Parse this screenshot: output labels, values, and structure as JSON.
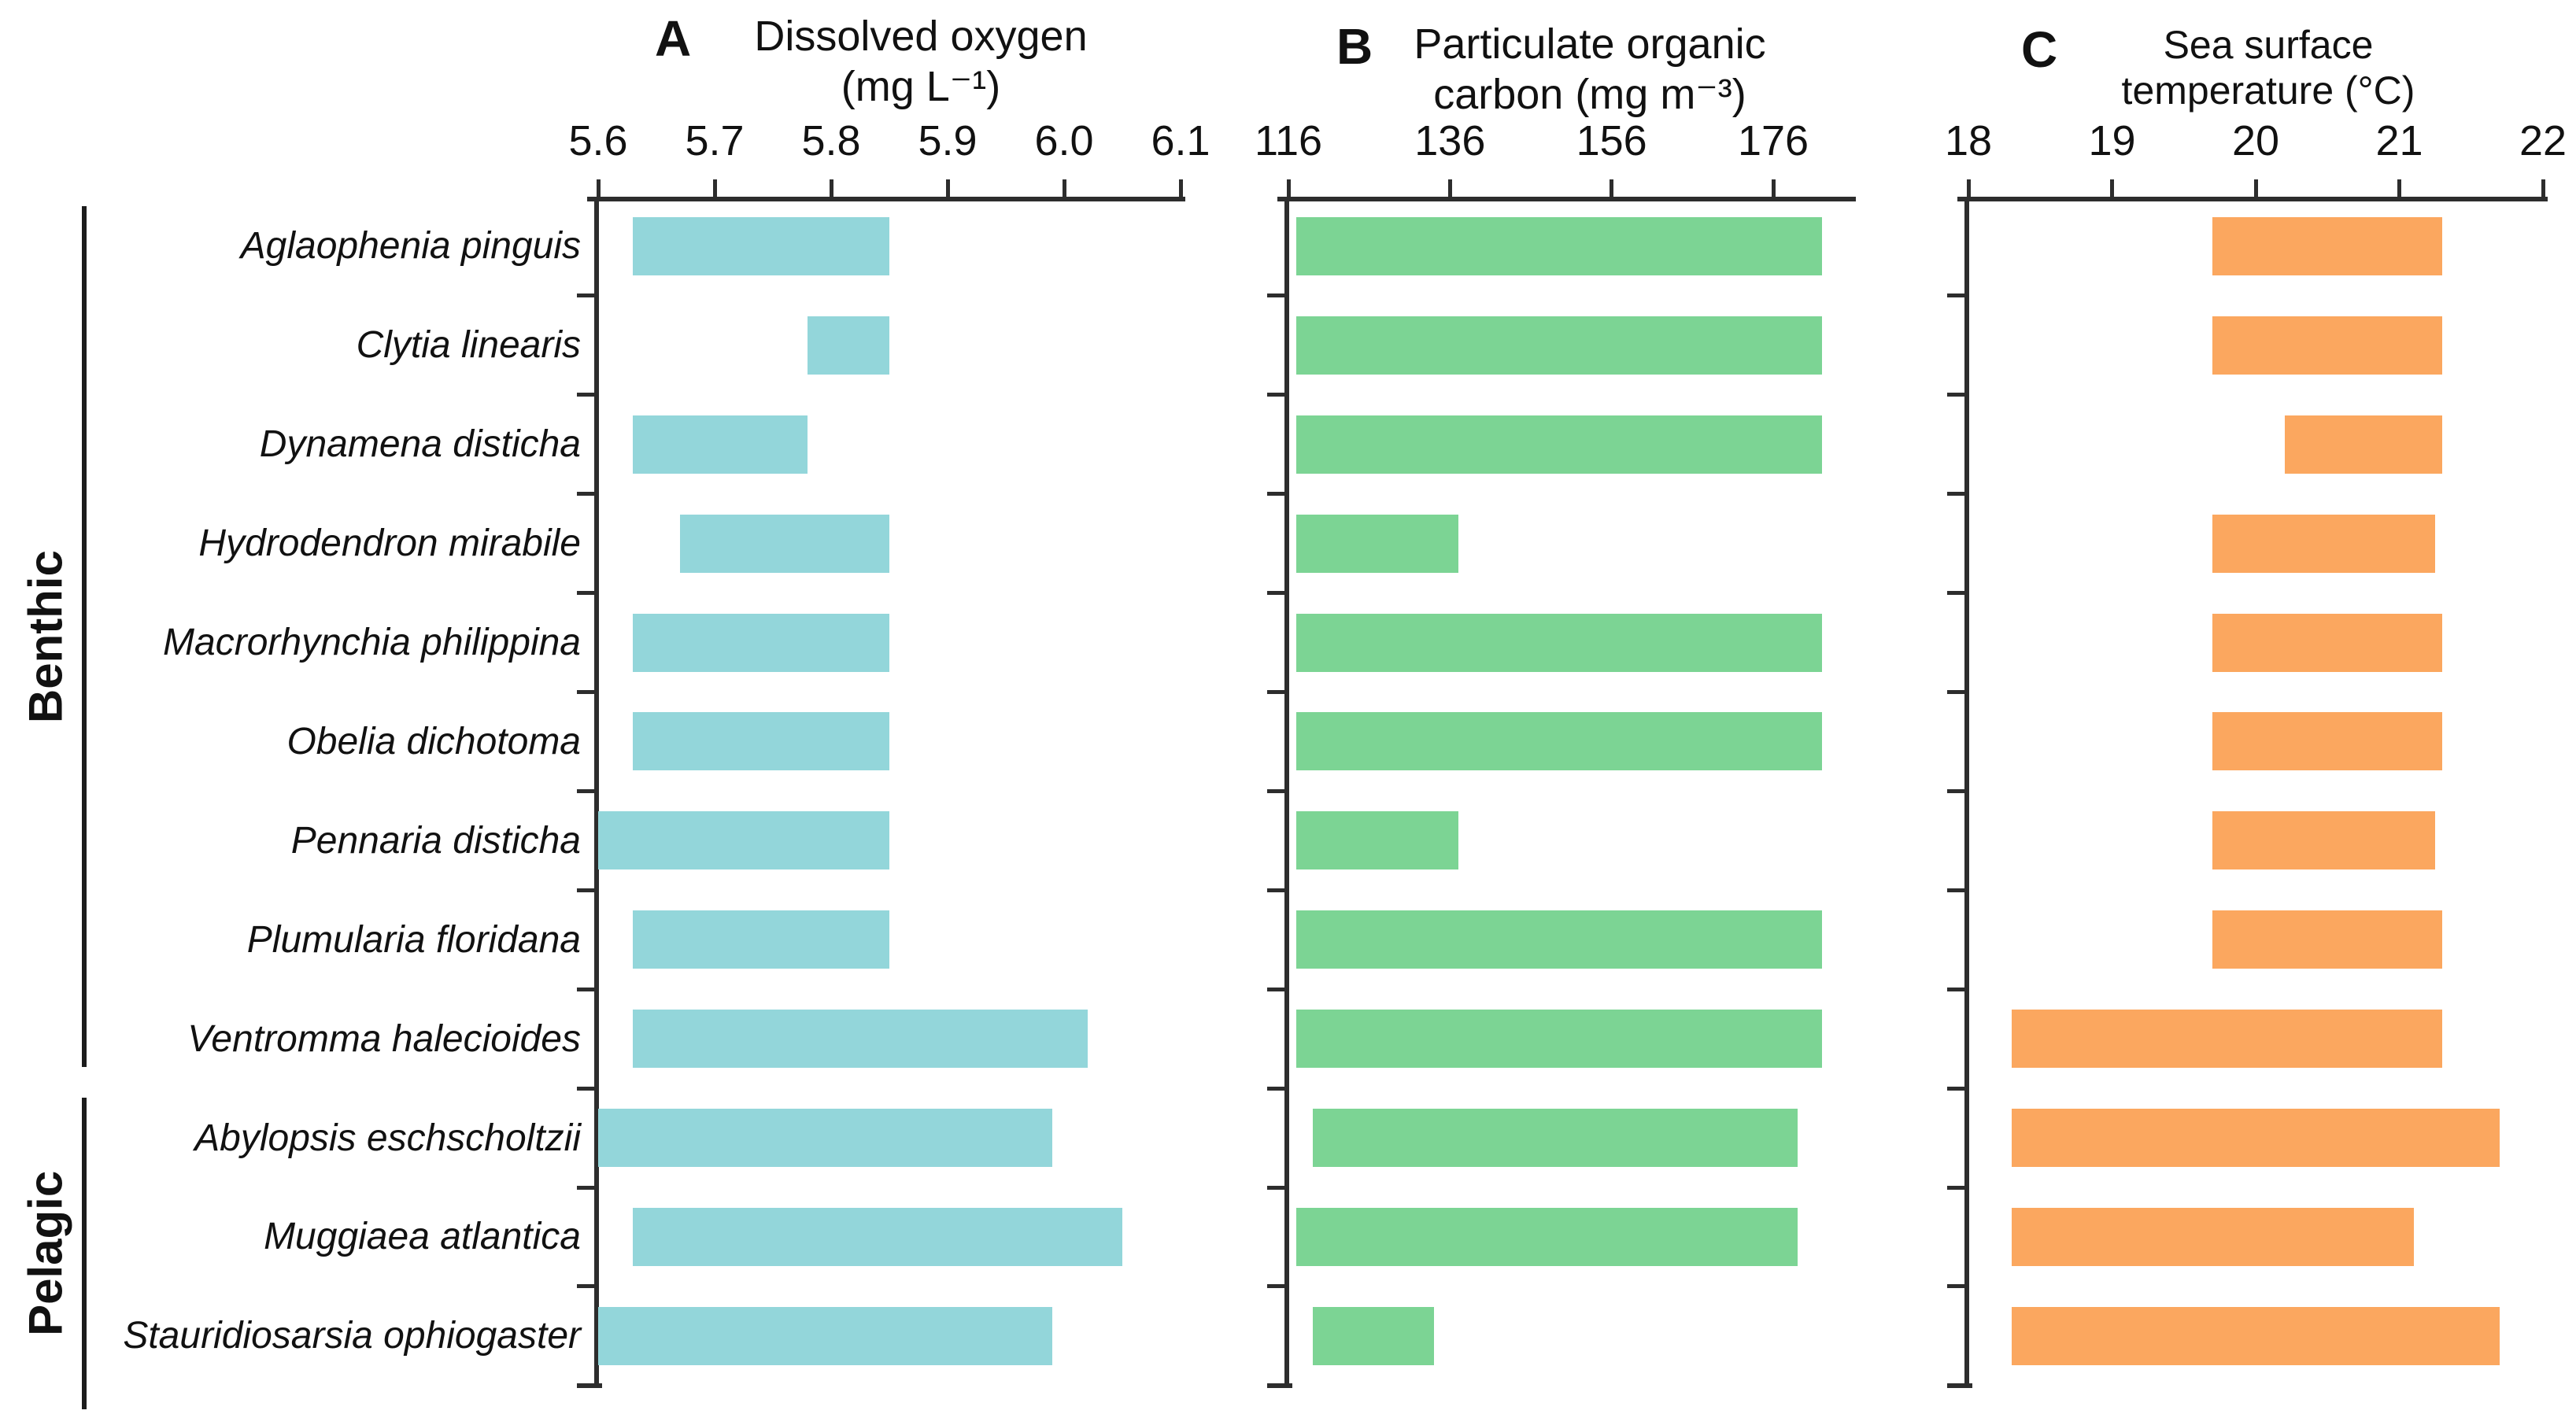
{
  "figure": {
    "background": "#ffffff",
    "axis_color": "#2d2d2d",
    "text_color": "#111111"
  },
  "groups": [
    {
      "label": "Benthic",
      "start_row": 0,
      "end_row": 8
    },
    {
      "label": "Pelagic",
      "start_row": 9,
      "end_row": 11
    }
  ],
  "species": [
    "Aglaophenia pinguis",
    "Clytia linearis",
    "Dynamena disticha",
    "Hydrodendron mirabile",
    "Macrorhynchia philippina",
    "Obelia dichotoma",
    "Pennaria disticha",
    "Plumularia floridana",
    "Ventromma halecioides",
    "Abylopsis eschscholtzii",
    "Muggiaea atlantica",
    "Stauridiosarsia ophiogaster"
  ],
  "chart_data": [
    {
      "type": "bar",
      "orientation": "horizontal-range",
      "panel_letter": "A",
      "title_lines": [
        "Dissolved oxygen",
        "(mg L⁻¹)"
      ],
      "xlabel": "Dissolved oxygen (mg L-1)",
      "bar_color": "#93d6da",
      "xlim": [
        5.6,
        6.1
      ],
      "ticks": [
        5.6,
        5.7,
        5.8,
        5.9,
        6.0,
        6.1
      ],
      "tick_labels": [
        "5.6",
        "5.7",
        "5.8",
        "5.9",
        "6.0",
        "6.1"
      ],
      "categories": [
        "Aglaophenia pinguis",
        "Clytia linearis",
        "Dynamena disticha",
        "Hydrodendron mirabile",
        "Macrorhynchia philippina",
        "Obelia dichotoma",
        "Pennaria disticha",
        "Plumularia floridana",
        "Ventromma halecioides",
        "Abylopsis eschscholtzii",
        "Muggiaea atlantica",
        "Stauridiosarsia ophiogaster"
      ],
      "ranges": [
        [
          5.63,
          5.85
        ],
        [
          5.78,
          5.85
        ],
        [
          5.63,
          5.78
        ],
        [
          5.67,
          5.85
        ],
        [
          5.63,
          5.85
        ],
        [
          5.63,
          5.85
        ],
        [
          5.6,
          5.85
        ],
        [
          5.63,
          5.85
        ],
        [
          5.63,
          6.02
        ],
        [
          5.6,
          5.99
        ],
        [
          5.63,
          6.05
        ],
        [
          5.6,
          5.99
        ]
      ]
    },
    {
      "type": "bar",
      "orientation": "horizontal-range",
      "panel_letter": "B",
      "title_lines": [
        "Particulate organic",
        "carbon (mg m⁻³)"
      ],
      "xlabel": "Particulate organic carbon (mg m-3)",
      "bar_color": "#7cd494",
      "xlim": [
        116,
        176
      ],
      "ticks": [
        116,
        136,
        156,
        176
      ],
      "tick_labels": [
        "116",
        "136",
        "156",
        "176"
      ],
      "categories": [
        "Aglaophenia pinguis",
        "Clytia linearis",
        "Dynamena disticha",
        "Hydrodendron mirabile",
        "Macrorhynchia philippina",
        "Obelia dichotoma",
        "Pennaria disticha",
        "Plumularia floridana",
        "Ventromma halecioides",
        "Abylopsis eschscholtzii",
        "Muggiaea atlantica",
        "Stauridiosarsia ophiogaster"
      ],
      "ranges": [
        [
          117,
          182
        ],
        [
          117,
          182
        ],
        [
          117,
          182
        ],
        [
          117,
          137
        ],
        [
          117,
          182
        ],
        [
          117,
          182
        ],
        [
          117,
          137
        ],
        [
          117,
          182
        ],
        [
          117,
          182
        ],
        [
          119,
          179
        ],
        [
          117,
          179
        ],
        [
          119,
          134
        ]
      ]
    },
    {
      "type": "bar",
      "orientation": "horizontal-range",
      "panel_letter": "C",
      "title_lines": [
        "Sea surface",
        "temperature (°C)"
      ],
      "xlabel": "Sea surface temperature (C)",
      "bar_color": "#fba75f",
      "xlim": [
        18,
        22
      ],
      "ticks": [
        18,
        19,
        20,
        21,
        22
      ],
      "tick_labels": [
        "18",
        "19",
        "20",
        "21",
        "22"
      ],
      "categories": [
        "Aglaophenia pinguis",
        "Clytia linearis",
        "Dynamena disticha",
        "Hydrodendron mirabile",
        "Macrorhynchia philippina",
        "Obelia dichotoma",
        "Pennaria disticha",
        "Plumularia floridana",
        "Ventromma halecioides",
        "Abylopsis eschscholtzii",
        "Muggiaea atlantica",
        "Stauridiosarsia ophiogaster"
      ],
      "ranges": [
        [
          19.7,
          21.3
        ],
        [
          19.7,
          21.3
        ],
        [
          20.2,
          21.3
        ],
        [
          19.7,
          21.25
        ],
        [
          19.7,
          21.3
        ],
        [
          19.7,
          21.3
        ],
        [
          19.7,
          21.25
        ],
        [
          19.7,
          21.3
        ],
        [
          18.3,
          21.3
        ],
        [
          18.3,
          21.7
        ],
        [
          18.3,
          21.1
        ],
        [
          18.3,
          21.7
        ]
      ]
    }
  ]
}
